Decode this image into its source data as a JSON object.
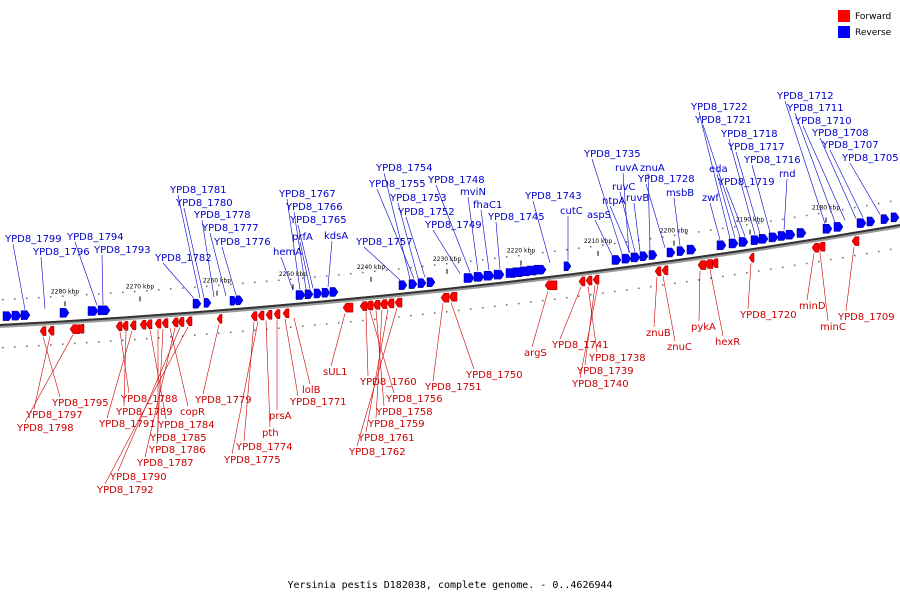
{
  "legend": [
    {
      "label": "Forward",
      "color": "#ff0000"
    },
    {
      "label": "Reverse",
      "color": "#0000ff"
    }
  ],
  "caption": "Yersinia pestis D182038, complete genome. - 0..4626944",
  "ticks": [
    "2280 kbp",
    "2270 kbp",
    "2260 kbp",
    "2250 kbp",
    "2240 kbp",
    "2230 kbp",
    "2220 kbp",
    "2210 kbp",
    "2200 kbp",
    "2190 kbp",
    "2180 kbp"
  ],
  "genes_reverse": [
    "YPD8_1799",
    "YPD8_1796",
    "YPD8_1794",
    "YPD8_1793",
    "YPD8_1781",
    "YPD8_1780",
    "YPD8_1778",
    "YPD8_1777",
    "YPD8_1776",
    "YPD8_1782",
    "YPD8_1767",
    "YPD8_1766",
    "YPD8_1765",
    "prfA",
    "kdsA",
    "hemA",
    "YPD8_1757",
    "YPD8_1754",
    "YPD8_1755",
    "YPD8_1753",
    "YPD8_1752",
    "YPD8_1749",
    "YPD8_1748",
    "mviN",
    "fhaC1",
    "YPD8_1745",
    "YPD8_1743",
    "cutC",
    "aspS",
    "YPD8_1735",
    "ruvA",
    "ruvC",
    "ntpA",
    "ruvB",
    "znuA",
    "YPD8_1728",
    "msbB",
    "zwf",
    "eda",
    "YPD8_1722",
    "YPD8_1721",
    "YPD8_1718",
    "YPD8_1717",
    "YPD8_1716",
    "YPD8_1719",
    "rnd",
    "YPD8_1712",
    "YPD8_1711",
    "YPD8_1710",
    "YPD8_1708",
    "YPD8_1707",
    "YPD8_1705"
  ],
  "genes_forward": [
    "YPD8_1795",
    "YPD8_1797",
    "YPD8_1798",
    "YPD8_1788",
    "YPD8_1789",
    "YPD8_1791",
    "YPD8_1784",
    "copR",
    "YPD8_1785",
    "YPD8_1786",
    "YPD8_1787",
    "YPD8_1790",
    "YPD8_1792",
    "YPD8_1779",
    "YPD8_1774",
    "YPD8_1775",
    "pth",
    "prsA",
    "YPD8_1771",
    "lolB",
    "sUL1",
    "YPD8_1760",
    "YPD8_1756",
    "YPD8_1758",
    "YPD8_1759",
    "YPD8_1761",
    "YPD8_1762",
    "YPD8_1751",
    "YPD8_1750",
    "argS",
    "YPD8_1741",
    "YPD8_1738",
    "YPD8_1739",
    "YPD8_1740",
    "znuB",
    "znuC",
    "pykA",
    "hexR",
    "YPD8_1720",
    "minD",
    "minC",
    "YPD8_1709"
  ]
}
